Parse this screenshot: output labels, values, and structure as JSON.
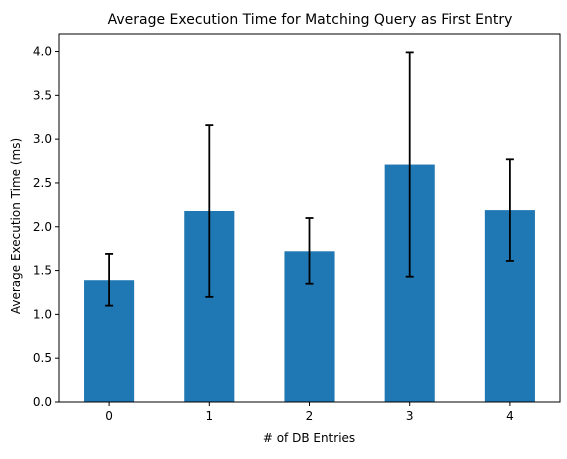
{
  "chart_data": {
    "type": "bar",
    "title": "Average Execution Time for Matching Query as First Entry",
    "xlabel": "# of DB Entries",
    "ylabel": "Average Execution Time (ms)",
    "categories": [
      "0",
      "1",
      "2",
      "3",
      "4"
    ],
    "values": [
      1.39,
      2.18,
      1.72,
      2.71,
      2.19
    ],
    "error_low": [
      1.1,
      1.2,
      1.35,
      1.43,
      1.61
    ],
    "error_high": [
      1.69,
      3.16,
      2.1,
      3.99,
      2.77
    ],
    "ylim": [
      0,
      4.2
    ],
    "yticks": [
      "0.0",
      "0.5",
      "1.0",
      "1.5",
      "2.0",
      "2.5",
      "3.0",
      "3.5",
      "4.0"
    ],
    "grid": false,
    "colors": {
      "bar": "#1f77b4",
      "error": "#000000",
      "axis": "#000000"
    }
  }
}
